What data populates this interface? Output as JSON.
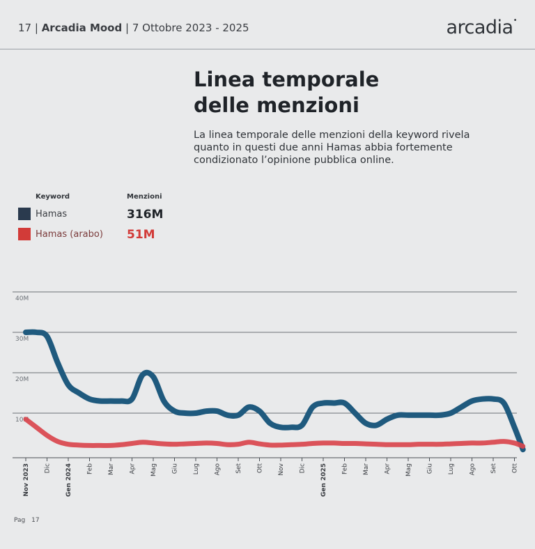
{
  "header": {
    "page_number": "17",
    "report_name": "Arcadia Mood",
    "period": "7 Ottobre 2023 - 2025",
    "brand": "arcadia"
  },
  "title_line1": "Linea temporale",
  "title_line2": "delle menzioni",
  "subtitle": "La linea temporale delle menzioni della keyword rivela quanto in questi due anni Hamas abbia fortemente condizionato l’opinione pubblica online.",
  "legend": {
    "keyword_header": "Keyword",
    "mentions_header": "Menzioni",
    "items": [
      {
        "keyword": "Hamas",
        "mentions": "316M",
        "color": "#2a3a4e"
      },
      {
        "keyword": "Hamas (arabo)",
        "mentions": "51M",
        "color": "#d23b38"
      }
    ]
  },
  "footer": {
    "label": "Pag",
    "page": "17"
  },
  "chart_data": {
    "type": "line",
    "ylim": [
      0,
      40
    ],
    "y_ticks": [
      {
        "value": 10,
        "label": "10M"
      },
      {
        "value": 20,
        "label": "20M"
      },
      {
        "value": 30,
        "label": "30M"
      },
      {
        "value": 40,
        "label": "40M"
      }
    ],
    "x_ticks": [
      {
        "label": "Nov 2023",
        "bold": true
      },
      {
        "label": "Dic",
        "bold": false
      },
      {
        "label": "Gen 2024",
        "bold": true
      },
      {
        "label": "Feb",
        "bold": false
      },
      {
        "label": "Mar",
        "bold": false
      },
      {
        "label": "Apr",
        "bold": false
      },
      {
        "label": "Mag",
        "bold": false
      },
      {
        "label": "Giu",
        "bold": false
      },
      {
        "label": "Lug",
        "bold": false
      },
      {
        "label": "Ago",
        "bold": false
      },
      {
        "label": "Set",
        "bold": false
      },
      {
        "label": "Ott",
        "bold": false
      },
      {
        "label": "Nov",
        "bold": false
      },
      {
        "label": "Dic",
        "bold": false
      },
      {
        "label": "Gen 2025",
        "bold": true
      },
      {
        "label": "Feb",
        "bold": false
      },
      {
        "label": "Mar",
        "bold": false
      },
      {
        "label": "Apr",
        "bold": false
      },
      {
        "label": "Mag",
        "bold": false
      },
      {
        "label": "Giu",
        "bold": false
      },
      {
        "label": "Lug",
        "bold": false
      },
      {
        "label": "Ago",
        "bold": false
      },
      {
        "label": "Set",
        "bold": false
      },
      {
        "label": "Ott",
        "bold": false
      }
    ],
    "series": [
      {
        "name": "Hamas",
        "color": "#1f5a7e",
        "x": [
          0,
          0.5,
          1,
          1.5,
          2,
          2.5,
          3,
          3.5,
          4,
          4.5,
          5,
          5.5,
          6,
          6.5,
          7,
          7.5,
          8,
          8.5,
          9,
          9.5,
          10,
          10.5,
          11,
          11.5,
          12,
          12.5,
          13,
          13.5,
          14,
          14.5,
          15,
          15.5,
          16,
          16.5,
          17,
          17.5,
          18,
          18.5,
          19,
          19.5,
          20,
          20.5,
          21,
          21.5,
          22,
          22.5,
          23,
          23.4
        ],
        "values": [
          30,
          30,
          29,
          22.5,
          17,
          15,
          13.5,
          13,
          13,
          13,
          13.5,
          19.5,
          19,
          13,
          10.5,
          10,
          10,
          10.5,
          10.5,
          9.5,
          9.5,
          11.5,
          10.5,
          7.5,
          6.5,
          6.5,
          7,
          11.5,
          12.5,
          12.5,
          12.5,
          10,
          7.5,
          7,
          8.5,
          9.5,
          9.5,
          9.5,
          9.5,
          9.5,
          10,
          11.5,
          13,
          13.5,
          13.5,
          12.5,
          6.5,
          1
        ]
      },
      {
        "name": "Hamas (arabo)",
        "color": "#d9454d",
        "x": [
          0,
          0.5,
          1,
          1.5,
          2,
          2.5,
          3,
          3.5,
          4,
          4.5,
          5,
          5.5,
          6,
          6.5,
          7,
          7.5,
          8,
          8.5,
          9,
          9.5,
          10,
          10.5,
          11,
          11.5,
          12,
          12.5,
          13,
          13.5,
          14,
          14.5,
          15,
          15.5,
          16,
          16.5,
          17,
          17.5,
          18,
          18.5,
          19,
          19.5,
          20,
          20.5,
          21,
          21.5,
          22,
          22.5,
          23,
          23.4
        ],
        "values": [
          8.5,
          6.5,
          4.5,
          3,
          2.3,
          2.1,
          2,
          2,
          2,
          2.2,
          2.5,
          2.8,
          2.6,
          2.4,
          2.3,
          2.4,
          2.5,
          2.6,
          2.5,
          2.2,
          2.3,
          2.8,
          2.4,
          2.1,
          2.1,
          2.2,
          2.3,
          2.5,
          2.6,
          2.6,
          2.5,
          2.5,
          2.4,
          2.3,
          2.2,
          2.2,
          2.2,
          2.3,
          2.3,
          2.3,
          2.4,
          2.5,
          2.6,
          2.6,
          2.8,
          3,
          2.6,
          1.8
        ]
      }
    ]
  }
}
